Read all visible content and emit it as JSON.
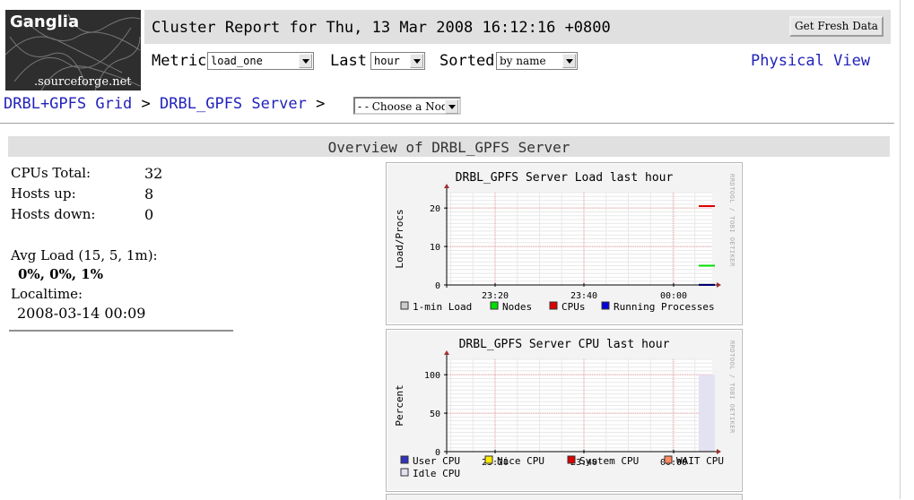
{
  "logo": {
    "title": "Ganglia",
    "subtitle": ".sourceforge.net"
  },
  "header": {
    "report_title": "Cluster Report for Thu, 13 Mar 2008 16:12:16 +0800",
    "fresh_button": "Get Fresh Data"
  },
  "controls": {
    "metric_label": "Metric",
    "metric_value": "load_one",
    "last_label": "Last",
    "last_value": "hour",
    "sorted_label": "Sorted",
    "sorted_value": "by name",
    "physical_view": "Physical View"
  },
  "breadcrumb": {
    "grid": "DRBL+GPFS Grid",
    "sep1": ">",
    "cluster": "DRBL_GPFS Server",
    "sep2": ">",
    "node_select": "- - Choose a Node"
  },
  "overview": {
    "title": "Overview of DRBL_GPFS Server",
    "cpus_total_label": "CPUs Total:",
    "cpus_total": "32",
    "hosts_up_label": "Hosts up:",
    "hosts_up": "8",
    "hosts_down_label": "Hosts down:",
    "hosts_down": "0",
    "avg_load_label": "Avg Load (15, 5, 1m):",
    "avg_load": "0%, 0%, 1%",
    "localtime_label": "Localtime:",
    "localtime": "2008-03-14 00:09"
  },
  "chart_data": [
    {
      "type": "line",
      "title": "DRBL_GPFS Server Load last hour",
      "ylabel": "Load/Procs",
      "watermark": "RRDTOOL / TOBI OETIKER",
      "xticks": [
        "23:20",
        "23:40",
        "00:00"
      ],
      "yticks": [
        0,
        10,
        20
      ],
      "ylim": [
        0,
        24
      ],
      "series": [
        {
          "name": "1-min Load",
          "color": "#cccccc",
          "values": [
            0.2
          ]
        },
        {
          "name": "Nodes",
          "color": "#00dd00",
          "values": [
            5
          ]
        },
        {
          "name": "CPUs",
          "color": "#dd0000",
          "values": [
            20.5
          ]
        },
        {
          "name": "Running Processes",
          "color": "#0000dd",
          "values": [
            0
          ]
        }
      ]
    },
    {
      "type": "area",
      "title": "DRBL_GPFS Server CPU last hour",
      "ylabel": "Percent",
      "watermark": "RRDTOOL / TOBI OETIKER",
      "xticks": [
        "23:20",
        "23:40",
        "00:00"
      ],
      "yticks": [
        0,
        50,
        100
      ],
      "ylim": [
        0,
        120
      ],
      "series": [
        {
          "name": "User CPU",
          "color": "#3333bb",
          "values": [
            0
          ]
        },
        {
          "name": "Nice CPU",
          "color": "#ffea00",
          "values": [
            0
          ]
        },
        {
          "name": "System CPU",
          "color": "#dd0000",
          "values": [
            0
          ]
        },
        {
          "name": "WAIT CPU",
          "color": "#ff8a60",
          "values": [
            0
          ]
        },
        {
          "name": "Idle CPU",
          "color": "#e2e2f2",
          "values": [
            100
          ]
        }
      ]
    }
  ]
}
